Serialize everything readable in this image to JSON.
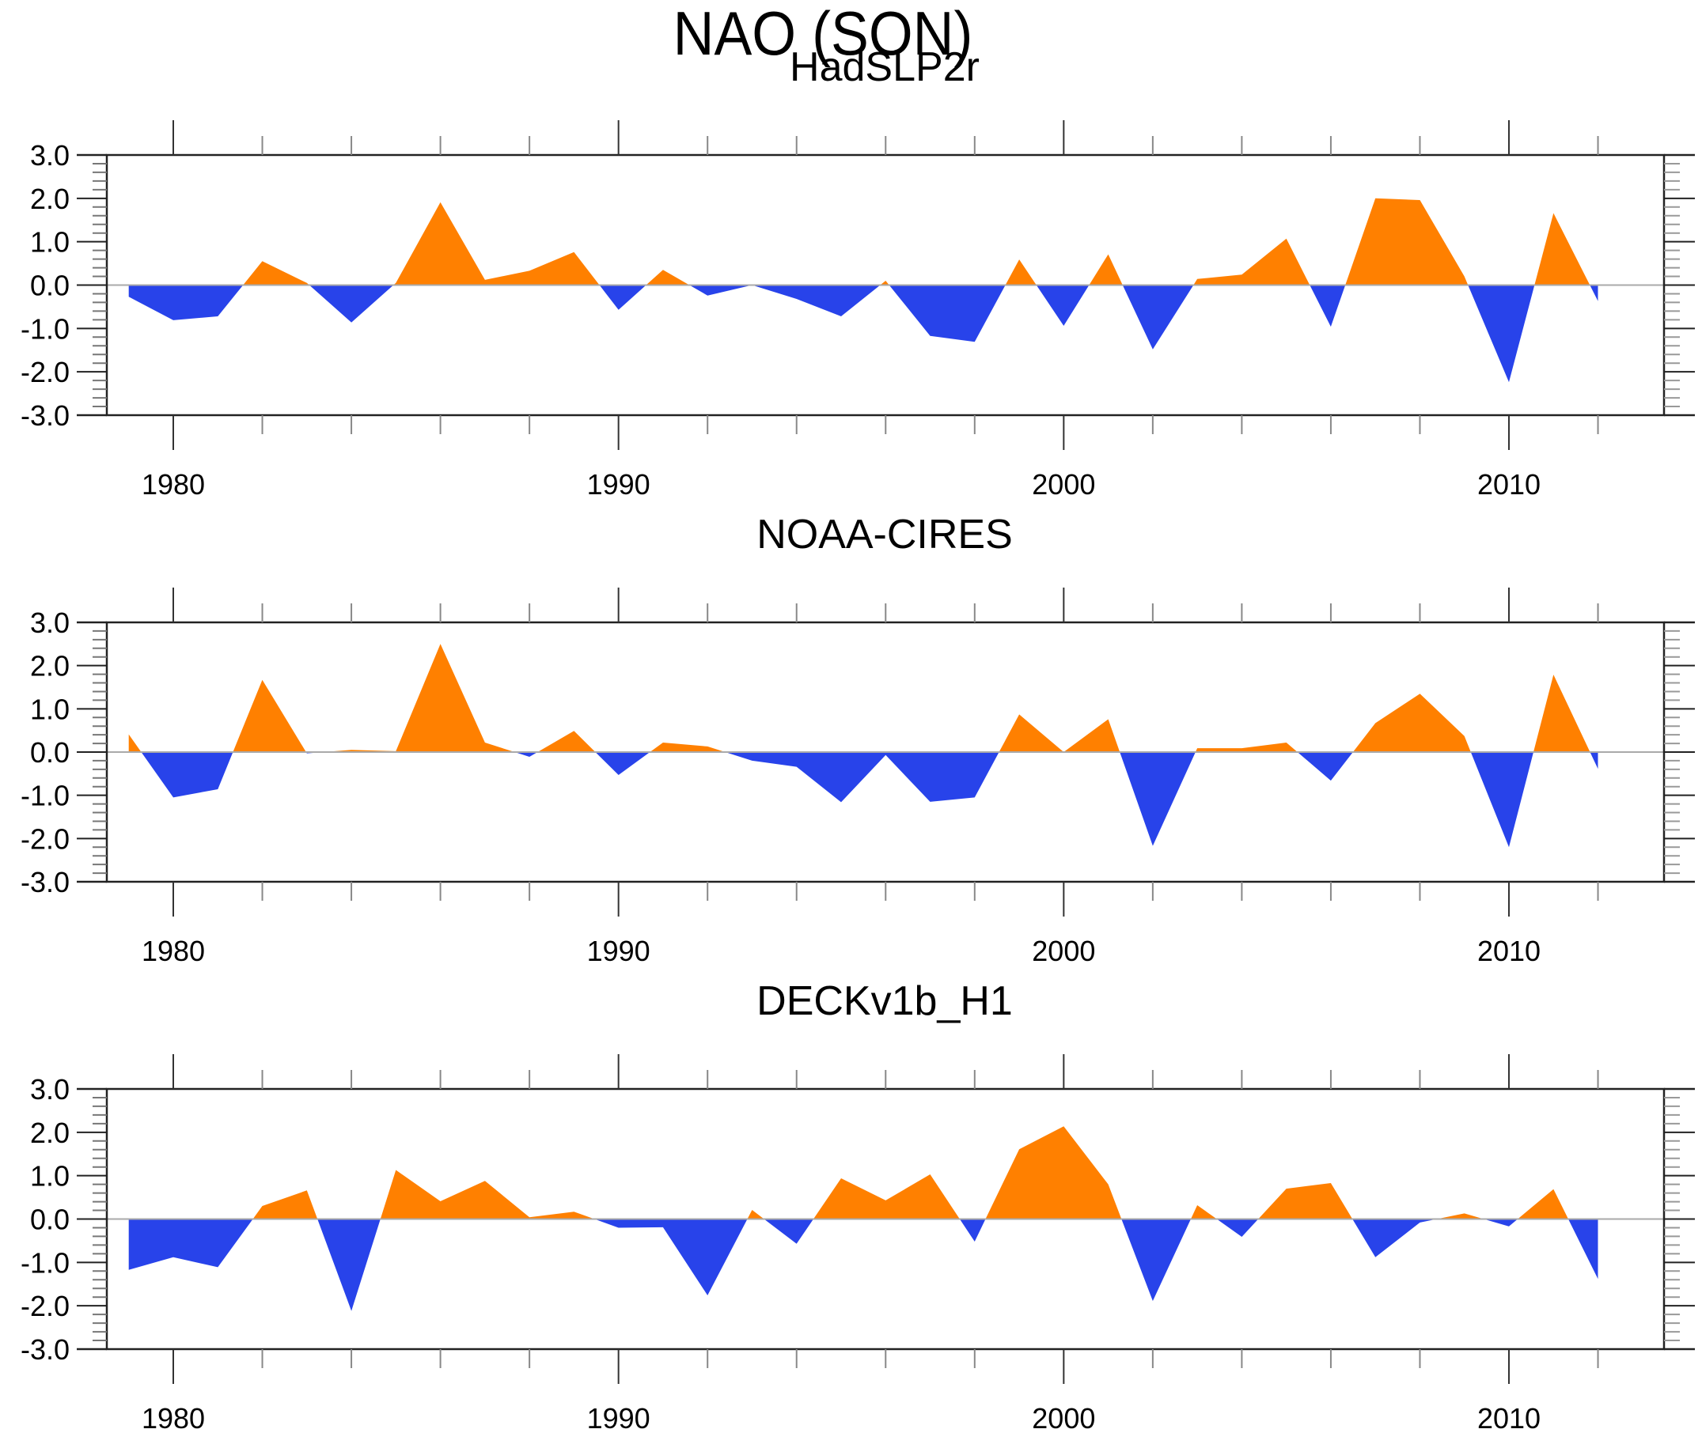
{
  "title": "NAO (SON)",
  "colors": {
    "positive": "#FF8000",
    "negative": "#2843EA",
    "axis": "#000000",
    "zero_line": "#AAAAAA"
  },
  "chart_data": [
    {
      "type": "area",
      "title": "HadSLP2r",
      "xlabel": "",
      "ylabel": "",
      "xlim": [
        1978,
        2014
      ],
      "ylim": [
        -3.0,
        3.0
      ],
      "xticks": [
        1980,
        1990,
        2000,
        2010
      ],
      "yticks": [
        "3.0",
        "2.0",
        "1.0",
        "0.0",
        "-1.0",
        "-2.0",
        "-3.0"
      ],
      "grid": false,
      "x": [
        1979,
        1980,
        1981,
        1982,
        1983,
        1984,
        1985,
        1986,
        1987,
        1988,
        1989,
        1990,
        1991,
        1992,
        1993,
        1994,
        1995,
        1996,
        1997,
        1998,
        1999,
        2000,
        2001,
        2002,
        2003,
        2004,
        2005,
        2006,
        2007,
        2008,
        2009,
        2010,
        2011,
        2012
      ],
      "values": [
        -0.27,
        -0.81,
        -0.72,
        0.55,
        0.05,
        -0.86,
        0.05,
        1.91,
        0.12,
        0.33,
        0.76,
        -0.57,
        0.35,
        -0.24,
        0.0,
        -0.32,
        -0.72,
        0.1,
        -1.17,
        -1.31,
        0.59,
        -0.94,
        0.71,
        -1.48,
        0.14,
        0.24,
        1.07,
        -0.96,
        2.0,
        1.96,
        0.2,
        -2.24,
        1.66,
        -0.37
      ]
    },
    {
      "type": "area",
      "title": "NOAA-CIRES",
      "xlabel": "",
      "ylabel": "",
      "xlim": [
        1978,
        2014
      ],
      "ylim": [
        -3.0,
        3.0
      ],
      "xticks": [
        1980,
        1990,
        2000,
        2010
      ],
      "yticks": [
        "3.0",
        "2.0",
        "1.0",
        "0.0",
        "-1.0",
        "-2.0",
        "-3.0"
      ],
      "grid": false,
      "x": [
        1979,
        1980,
        1981,
        1982,
        1983,
        1984,
        1985,
        1986,
        1987,
        1988,
        1989,
        1990,
        1991,
        1992,
        1993,
        1994,
        1995,
        1996,
        1997,
        1998,
        1999,
        2000,
        2001,
        2002,
        2003,
        2004,
        2005,
        2006,
        2007,
        2008,
        2009,
        2010,
        2011,
        2012
      ],
      "values": [
        0.41,
        -1.05,
        -0.86,
        1.67,
        -0.03,
        0.05,
        0.02,
        2.5,
        0.22,
        -0.11,
        0.49,
        -0.53,
        0.22,
        0.13,
        -0.2,
        -0.34,
        -1.16,
        -0.07,
        -1.15,
        -1.05,
        0.87,
        0.0,
        0.76,
        -2.17,
        0.09,
        0.09,
        0.22,
        -0.66,
        0.67,
        1.35,
        0.37,
        -2.2,
        1.79,
        -0.39
      ]
    },
    {
      "type": "area",
      "title": "DECKv1b_H1",
      "xlabel": "",
      "ylabel": "",
      "xlim": [
        1978,
        2014
      ],
      "ylim": [
        -3.0,
        3.0
      ],
      "xticks": [
        1980,
        1990,
        2000,
        2010
      ],
      "yticks": [
        "3.0",
        "2.0",
        "1.0",
        "0.0",
        "-1.0",
        "-2.0",
        "-3.0"
      ],
      "grid": false,
      "x": [
        1979,
        1980,
        1981,
        1982,
        1983,
        1984,
        1985,
        1986,
        1987,
        1988,
        1989,
        1990,
        1991,
        1992,
        1993,
        1994,
        1995,
        1996,
        1997,
        1998,
        1999,
        2000,
        2001,
        2002,
        2003,
        2004,
        2005,
        2006,
        2007,
        2008,
        2009,
        2010,
        2011,
        2012
      ],
      "values": [
        -1.17,
        -0.88,
        -1.11,
        0.3,
        0.66,
        -2.12,
        1.13,
        0.41,
        0.88,
        0.04,
        0.17,
        -0.2,
        -0.19,
        -1.76,
        0.21,
        -0.57,
        0.94,
        0.43,
        1.03,
        -0.52,
        1.61,
        2.14,
        0.8,
        -1.89,
        0.32,
        -0.41,
        0.7,
        0.83,
        -0.88,
        -0.08,
        0.13,
        -0.17,
        0.69,
        -1.38
      ]
    }
  ]
}
